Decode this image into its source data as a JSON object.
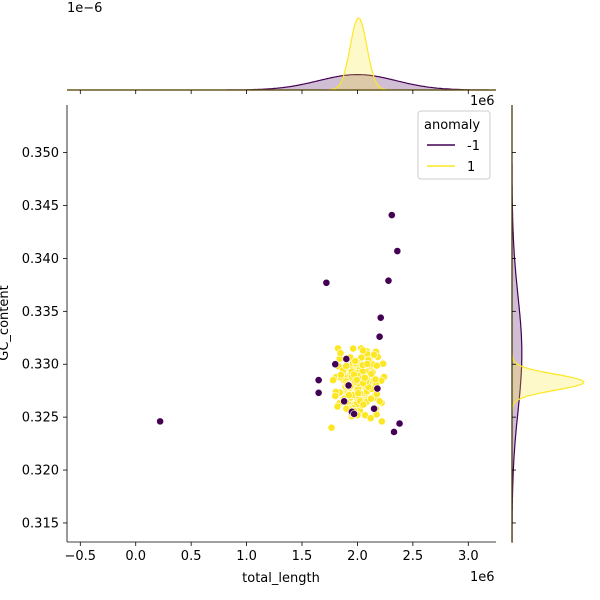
{
  "chart_data": {
    "type": "scatter",
    "variant": "jointplot-with-marginal-kde",
    "xlabel": "total_length",
    "ylabel": "GC_content",
    "x_offset_text": "1e6",
    "top_margin_offset_text": "1e−6",
    "right_margin_offset_text": "1e6",
    "xlim": [
      -0.62,
      3.25
    ],
    "ylim": [
      0.3132,
      0.3545
    ],
    "x_ticks": [
      -0.5,
      0.0,
      0.5,
      1.0,
      1.5,
      2.0,
      2.5,
      3.0
    ],
    "x_tick_labels": [
      "−0.5",
      "0.0",
      "0.5",
      "1.0",
      "1.5",
      "2.0",
      "2.5",
      "3.0"
    ],
    "y_ticks": [
      0.315,
      0.32,
      0.325,
      0.33,
      0.335,
      0.34,
      0.345,
      0.35
    ],
    "y_tick_labels": [
      "0.315",
      "0.320",
      "0.325",
      "0.330",
      "0.335",
      "0.340",
      "0.345",
      "0.350"
    ],
    "grid": false,
    "legend": {
      "title": "anomaly",
      "placement": "top-right",
      "entries": [
        {
          "label": "-1",
          "color": "#440154"
        },
        {
          "label": "1",
          "color": "#fde725"
        }
      ]
    },
    "series": [
      {
        "name": "-1",
        "color": "#440154",
        "points": [
          [
            0.22,
            0.3246
          ],
          [
            1.65,
            0.3285
          ],
          [
            1.65,
            0.3273
          ],
          [
            1.72,
            0.3377
          ],
          [
            1.8,
            0.33
          ],
          [
            1.88,
            0.3265
          ],
          [
            1.9,
            0.3305
          ],
          [
            1.92,
            0.328
          ],
          [
            1.95,
            0.3255
          ],
          [
            1.97,
            0.3253
          ],
          [
            2.2,
            0.3326
          ],
          [
            2.21,
            0.3344
          ],
          [
            2.28,
            0.3379
          ],
          [
            2.31,
            0.3441
          ],
          [
            2.36,
            0.3407
          ],
          [
            2.33,
            0.3236
          ],
          [
            2.38,
            0.3244
          ],
          [
            2.18,
            0.3277
          ],
          [
            2.15,
            0.3258
          ]
        ]
      },
      {
        "name": "1",
        "color": "#fde725",
        "cluster": {
          "x_mean": 2.01,
          "x_sd": 0.09,
          "y_mean": 0.3283,
          "y_sd": 0.0013,
          "count": 260
        },
        "points": [
          [
            1.78,
            0.3285
          ],
          [
            1.8,
            0.327
          ],
          [
            1.82,
            0.326
          ],
          [
            1.85,
            0.329
          ],
          [
            2.2,
            0.3265
          ],
          [
            2.22,
            0.3246
          ],
          [
            2.12,
            0.3249
          ],
          [
            2.05,
            0.3313
          ],
          [
            1.98,
            0.3303
          ],
          [
            2.15,
            0.3309
          ],
          [
            1.9,
            0.3258
          ],
          [
            2.0,
            0.3252
          ]
        ]
      }
    ],
    "marginal_x_kde": [
      {
        "name": "-1",
        "color": "#440154",
        "mean": 2.0,
        "sd": 0.35
      },
      {
        "name": "1",
        "color": "#fde725",
        "mean": 2.01,
        "sd": 0.075
      }
    ],
    "marginal_y_kde": [
      {
        "name": "-1",
        "color": "#440154",
        "mean": 0.331,
        "sd": 0.0055
      },
      {
        "name": "1",
        "color": "#fde725",
        "mean": 0.3283,
        "sd": 0.00075
      }
    ]
  }
}
